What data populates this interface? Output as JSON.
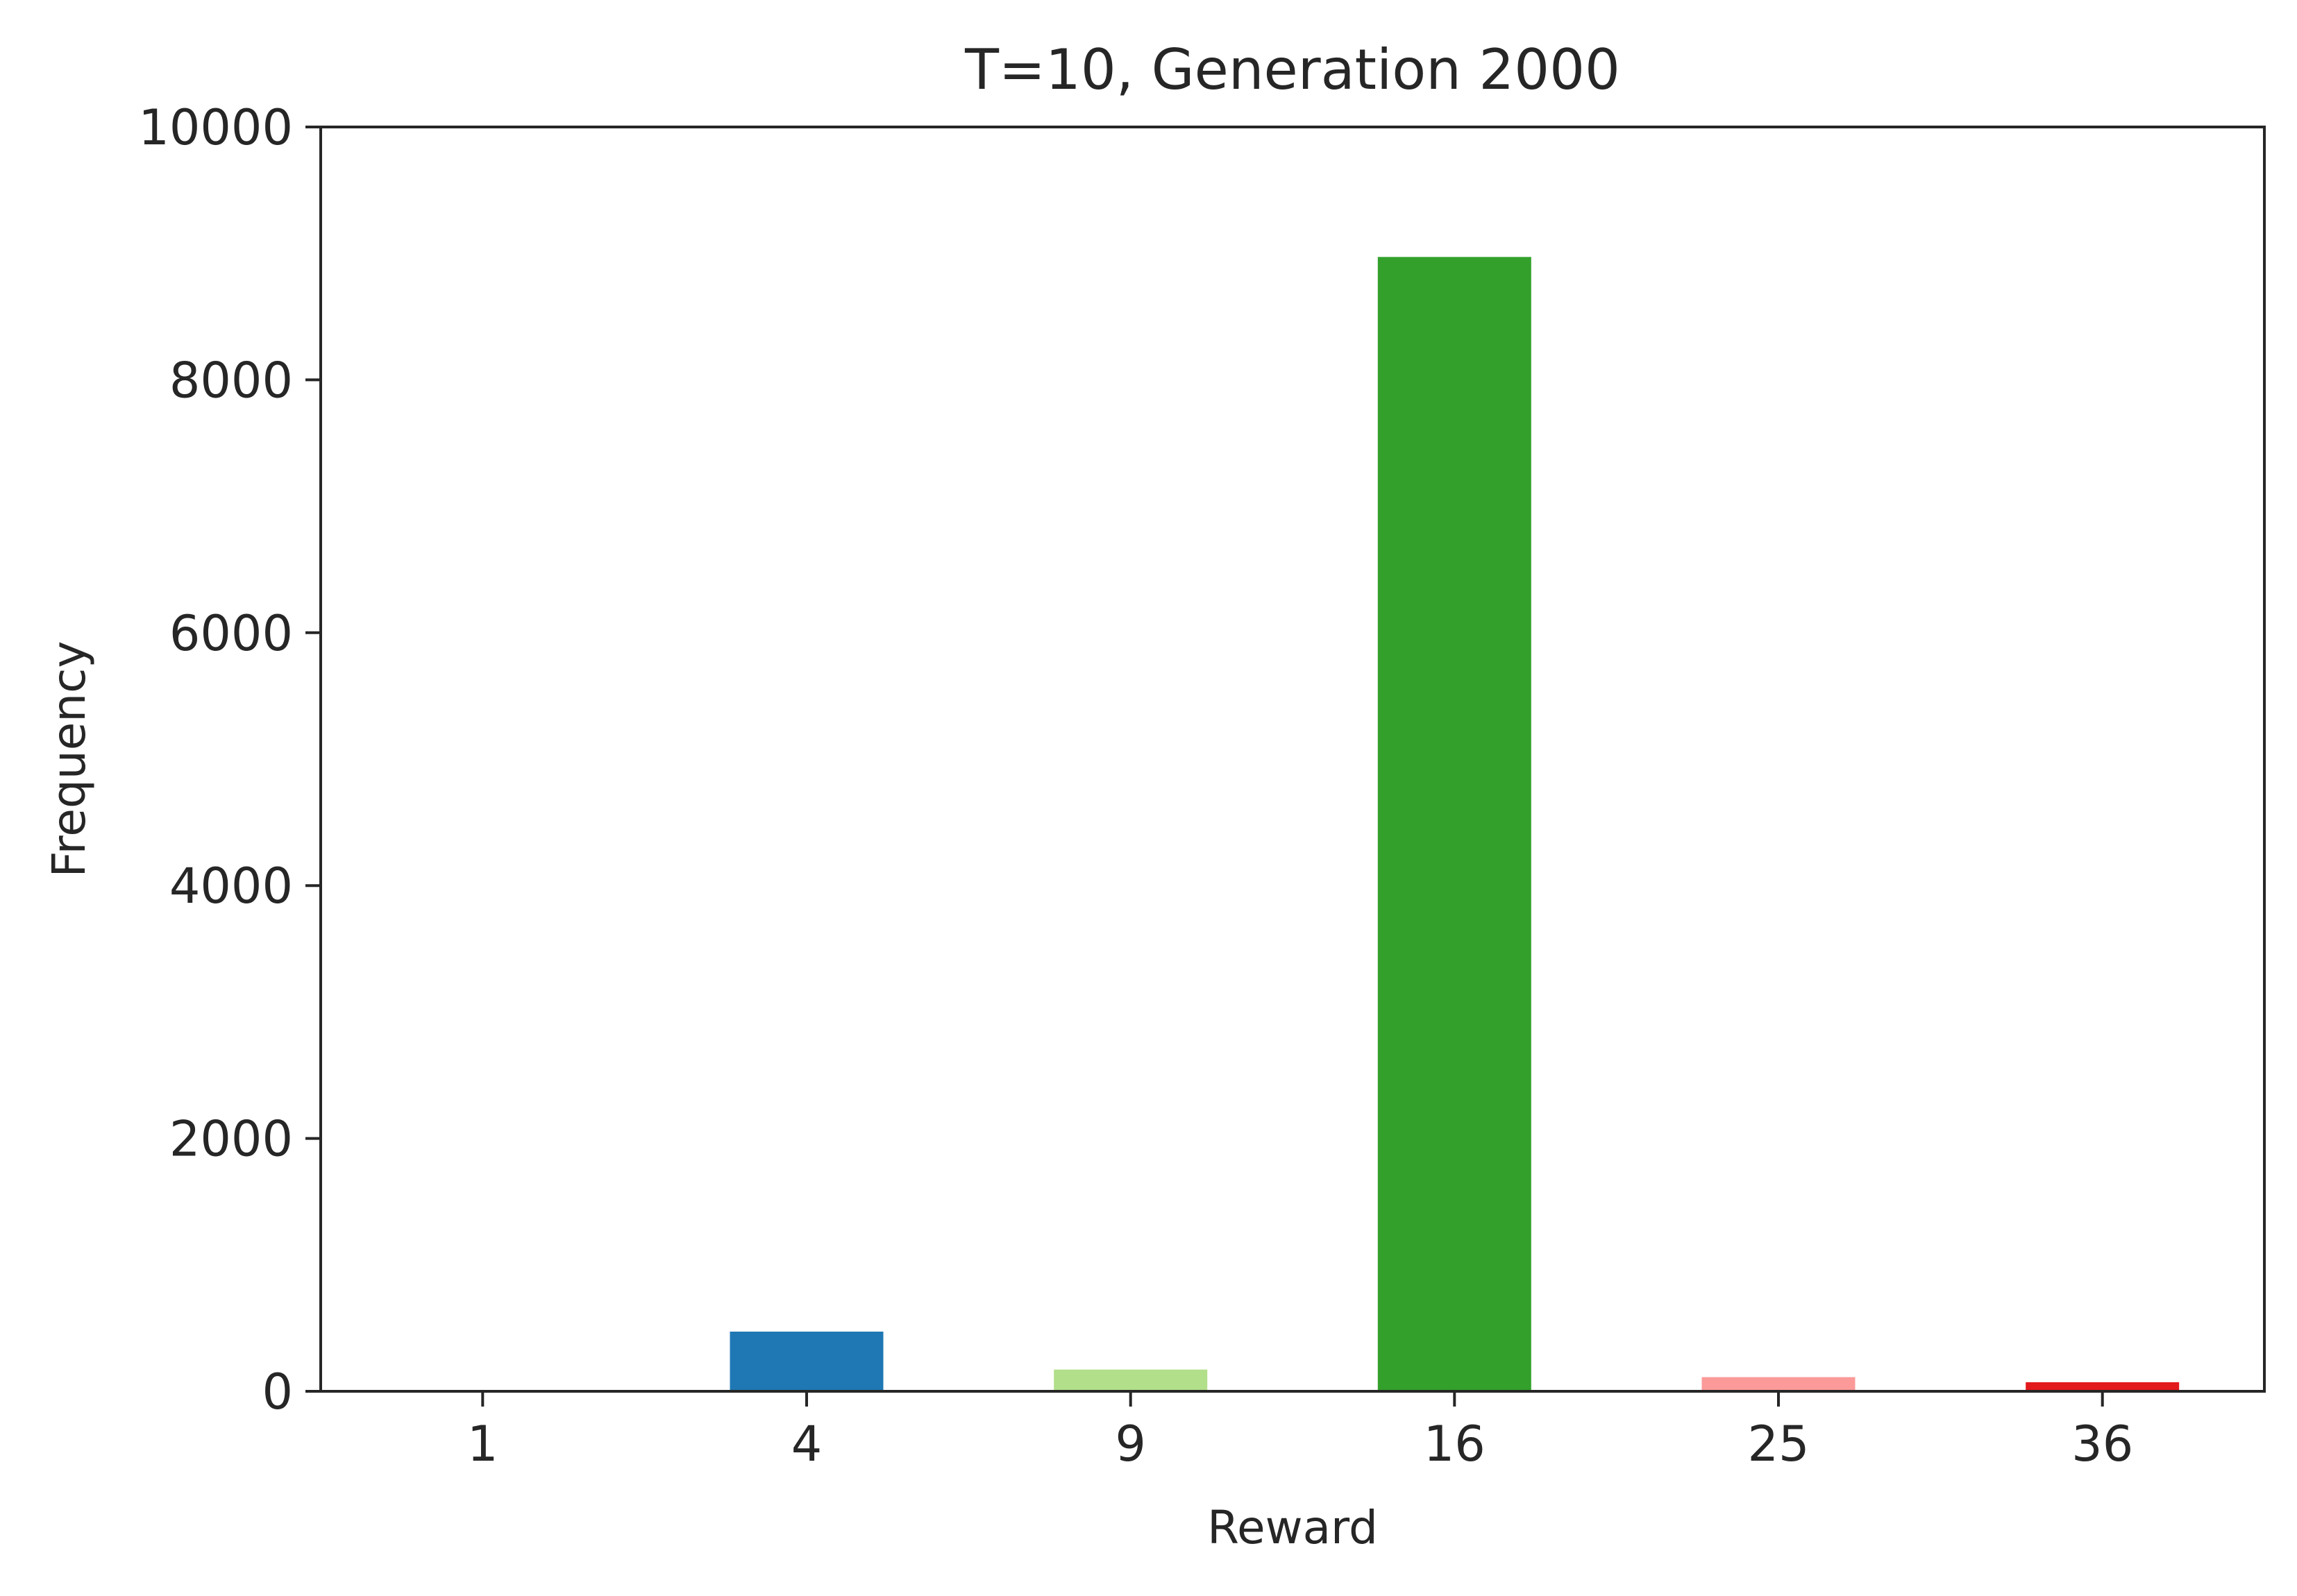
{
  "chart_data": {
    "type": "bar",
    "title": "T=10, Generation 2000",
    "xlabel": "Reward",
    "ylabel": "Frequency",
    "categories": [
      "1",
      "4",
      "9",
      "16",
      "25",
      "36"
    ],
    "values": [
      10,
      480,
      180,
      8980,
      120,
      80
    ],
    "colors": [
      "#a6cee3",
      "#1f78b4",
      "#b2df8a",
      "#33a02c",
      "#fb9a99",
      "#e31a1c"
    ],
    "ylim": [
      0,
      10000
    ],
    "yticks": [
      "0",
      "2000",
      "4000",
      "6000",
      "8000",
      "10000"
    ],
    "grid": false,
    "legend": "none"
  }
}
